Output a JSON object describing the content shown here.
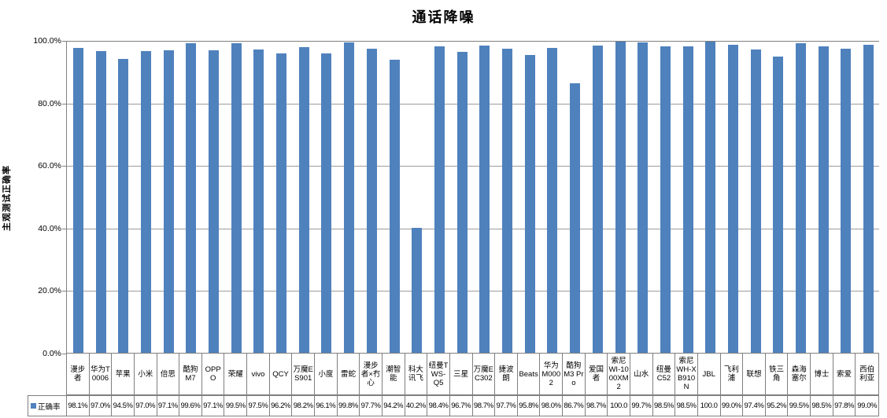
{
  "title": "通话降噪",
  "colors": {
    "bar": "#4F81BD",
    "gridline": "#9c9c9c",
    "axis_border": "#7f7f7f",
    "text": "#000000",
    "background": "#ffffff"
  },
  "y_axis": {
    "title": "主观测试正确率",
    "tick_labels": [
      "100.0%",
      "80.0%",
      "60.0%",
      "40.0%",
      "20.0%",
      "0.0%"
    ]
  },
  "legend": {
    "series_label": "正确率"
  },
  "chart_data": {
    "type": "bar",
    "title": "通话降噪",
    "xlabel": "",
    "ylabel": "主观测试正确率",
    "ylim": [
      0,
      100
    ],
    "y_ticks_percent": [
      0,
      20,
      40,
      60,
      80,
      100
    ],
    "grid": true,
    "legend_position": "bottom-left-data-table",
    "series_name": "正确率",
    "categories": [
      "漫步者",
      "华为T0006",
      "苹果",
      "小米",
      "倍思",
      "酷狗M7",
      "OPPO",
      "荣耀",
      "vivo",
      "QCY",
      "万魔ES901",
      "小度",
      "雷蛇",
      "漫步者×冇心",
      "潮智能",
      "科大讯飞",
      "纽曼TWS-Q5",
      "三星",
      "万魔EC302",
      "捷波朗",
      "Beats",
      "华为M0002",
      "酷狗M3 Pro",
      "爱国者",
      "索尼WI-1000XM2",
      "山水",
      "纽曼C52",
      "索尼WH-XB910N",
      "JBL",
      "飞利浦",
      "联想",
      "铁三角",
      "森海塞尔",
      "博士",
      "索爱",
      "西伯利亚"
    ],
    "values": [
      98.1,
      97.0,
      94.5,
      97.0,
      97.1,
      99.6,
      97.1,
      99.5,
      97.5,
      96.2,
      98.2,
      96.1,
      99.8,
      97.7,
      94.2,
      40.2,
      98.4,
      96.7,
      98.7,
      97.7,
      95.8,
      98.0,
      86.7,
      98.7,
      100.0,
      99.7,
      98.5,
      98.5,
      100.0,
      99.0,
      97.4,
      95.2,
      99.5,
      98.5,
      97.8,
      99.0
    ],
    "value_labels": [
      "98.1%",
      "97.0%",
      "94.5%",
      "97.0%",
      "97.1%",
      "99.6%",
      "97.1%",
      "99.5%",
      "97.5%",
      "96.2%",
      "98.2%",
      "96.1%",
      "99.8%",
      "97.7%",
      "94.2%",
      "40.2%",
      "98.4%",
      "96.7%",
      "98.7%",
      "97.7%",
      "95.8%",
      "98.0%",
      "86.7%",
      "98.7%",
      "100.0",
      "99.7%",
      "98.5%",
      "98.5%",
      "100.0",
      "99.0%",
      "97.4%",
      "95.2%",
      "99.5%",
      "98.5%",
      "97.8%",
      "99.0%"
    ]
  }
}
